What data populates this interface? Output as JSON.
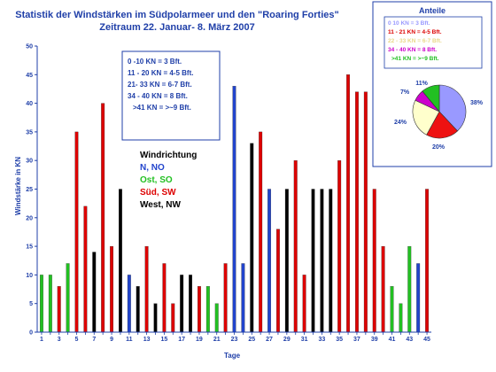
{
  "chart_data": {
    "type": "bar",
    "title": "Statistik der Windstärken im Südpolarmeer und den \"Roaring Forties\"",
    "subtitle": "Zeitraum 22. Januar- 8. März 2007",
    "xlabel": "Tage",
    "ylabel": "Windstärke in KN",
    "ylim": [
      0,
      50
    ],
    "yticks": [
      0,
      5,
      10,
      15,
      20,
      25,
      30,
      35,
      40,
      45,
      50
    ],
    "xtick_labels": [
      "1",
      "3",
      "5",
      "7",
      "9",
      "11",
      "13",
      "15",
      "17",
      "19",
      "21",
      "23",
      "25",
      "27",
      "29",
      "31",
      "33",
      "35",
      "37",
      "39",
      "41",
      "43",
      "45"
    ],
    "grid": false,
    "colors": {
      "green": "#22c022",
      "red": "#dd0000",
      "black": "#000000",
      "blue": "#2244cc"
    },
    "bars": [
      {
        "day": 1,
        "value": 10,
        "color": "green"
      },
      {
        "day": 2,
        "value": 10,
        "color": "green"
      },
      {
        "day": 3,
        "value": 8,
        "color": "red"
      },
      {
        "day": 4,
        "value": 12,
        "color": "green"
      },
      {
        "day": 5,
        "value": 35,
        "color": "red"
      },
      {
        "day": 6,
        "value": 22,
        "color": "red"
      },
      {
        "day": 7,
        "value": 14,
        "color": "black"
      },
      {
        "day": 8,
        "value": 40,
        "color": "red"
      },
      {
        "day": 9,
        "value": 15,
        "color": "red"
      },
      {
        "day": 10,
        "value": 25,
        "color": "black"
      },
      {
        "day": 11,
        "value": 10,
        "color": "blue"
      },
      {
        "day": 12,
        "value": 8,
        "color": "black"
      },
      {
        "day": 13,
        "value": 15,
        "color": "red"
      },
      {
        "day": 14,
        "value": 5,
        "color": "black"
      },
      {
        "day": 15,
        "value": 12,
        "color": "red"
      },
      {
        "day": 16,
        "value": 5,
        "color": "red"
      },
      {
        "day": 17,
        "value": 10,
        "color": "black"
      },
      {
        "day": 18,
        "value": 10,
        "color": "black"
      },
      {
        "day": 19,
        "value": 8,
        "color": "red"
      },
      {
        "day": 20,
        "value": 8,
        "color": "green"
      },
      {
        "day": 21,
        "value": 5,
        "color": "green"
      },
      {
        "day": 22,
        "value": 12,
        "color": "red"
      },
      {
        "day": 23,
        "value": 43,
        "color": "blue"
      },
      {
        "day": 24,
        "value": 12,
        "color": "blue"
      },
      {
        "day": 25,
        "value": 33,
        "color": "black"
      },
      {
        "day": 26,
        "value": 35,
        "color": "red"
      },
      {
        "day": 27,
        "value": 25,
        "color": "blue"
      },
      {
        "day": 28,
        "value": 18,
        "color": "red"
      },
      {
        "day": 29,
        "value": 25,
        "color": "black"
      },
      {
        "day": 30,
        "value": 30,
        "color": "red"
      },
      {
        "day": 31,
        "value": 10,
        "color": "red"
      },
      {
        "day": 32,
        "value": 25,
        "color": "black"
      },
      {
        "day": 33,
        "value": 25,
        "color": "black"
      },
      {
        "day": 34,
        "value": 25,
        "color": "black"
      },
      {
        "day": 35,
        "value": 30,
        "color": "red"
      },
      {
        "day": 36,
        "value": 45,
        "color": "red"
      },
      {
        "day": 37,
        "value": 42,
        "color": "red"
      },
      {
        "day": 38,
        "value": 42,
        "color": "red"
      },
      {
        "day": 39,
        "value": 25,
        "color": "red"
      },
      {
        "day": 40,
        "value": 15,
        "color": "red"
      },
      {
        "day": 41,
        "value": 8,
        "color": "green"
      },
      {
        "day": 42,
        "value": 5,
        "color": "green"
      },
      {
        "day": 43,
        "value": 15,
        "color": "green"
      },
      {
        "day": 44,
        "value": 12,
        "color": "blue"
      },
      {
        "day": 45,
        "value": 25,
        "color": "red"
      }
    ],
    "scale_legend": [
      "0   -10 KN   =    3 Bft.",
      "11 - 20 KN  =  4-5 Bft.",
      "21-  33 KN  =  6-7 Bft.",
      "34 -  40 KN  =      8 Bft.",
      ">41    KN =  >~9 Bft."
    ],
    "direction_legend": {
      "title": "Windrichtung",
      "items": [
        {
          "label": "N, NO",
          "color": "#2244cc"
        },
        {
          "label": "Ost, SO",
          "color": "#22c022"
        },
        {
          "label": "Süd, SW",
          "color": "#dd0000"
        },
        {
          "label": "West, NW",
          "color": "#000000"
        }
      ]
    },
    "pie": {
      "title": "Anteile",
      "legend": [
        {
          "text": "0     10 KN  =     3 Bft.",
          "color": "#9999ff"
        },
        {
          "text": "11 - 21 KN =  4-5 Bft.",
          "color": "#dd0000"
        },
        {
          "text": "22 - 33 KN  =  6-7 Bft.",
          "color": "#e8d88a"
        },
        {
          "text": "34 - 40 KN  =      8 Bft.",
          "color": "#cc00cc"
        },
        {
          "text": ">41    KN  = >~9 Bft.",
          "color": "#22c022"
        }
      ],
      "slices": [
        {
          "label": "38%",
          "value": 38,
          "color": "#9999ff"
        },
        {
          "label": "20%",
          "value": 20,
          "color": "#ee1111"
        },
        {
          "label": "24%",
          "value": 24,
          "color": "#ffffcc"
        },
        {
          "label": "7%",
          "value": 7,
          "color": "#cc00cc"
        },
        {
          "label": "11%",
          "value": 11,
          "color": "#22c022"
        }
      ]
    }
  }
}
